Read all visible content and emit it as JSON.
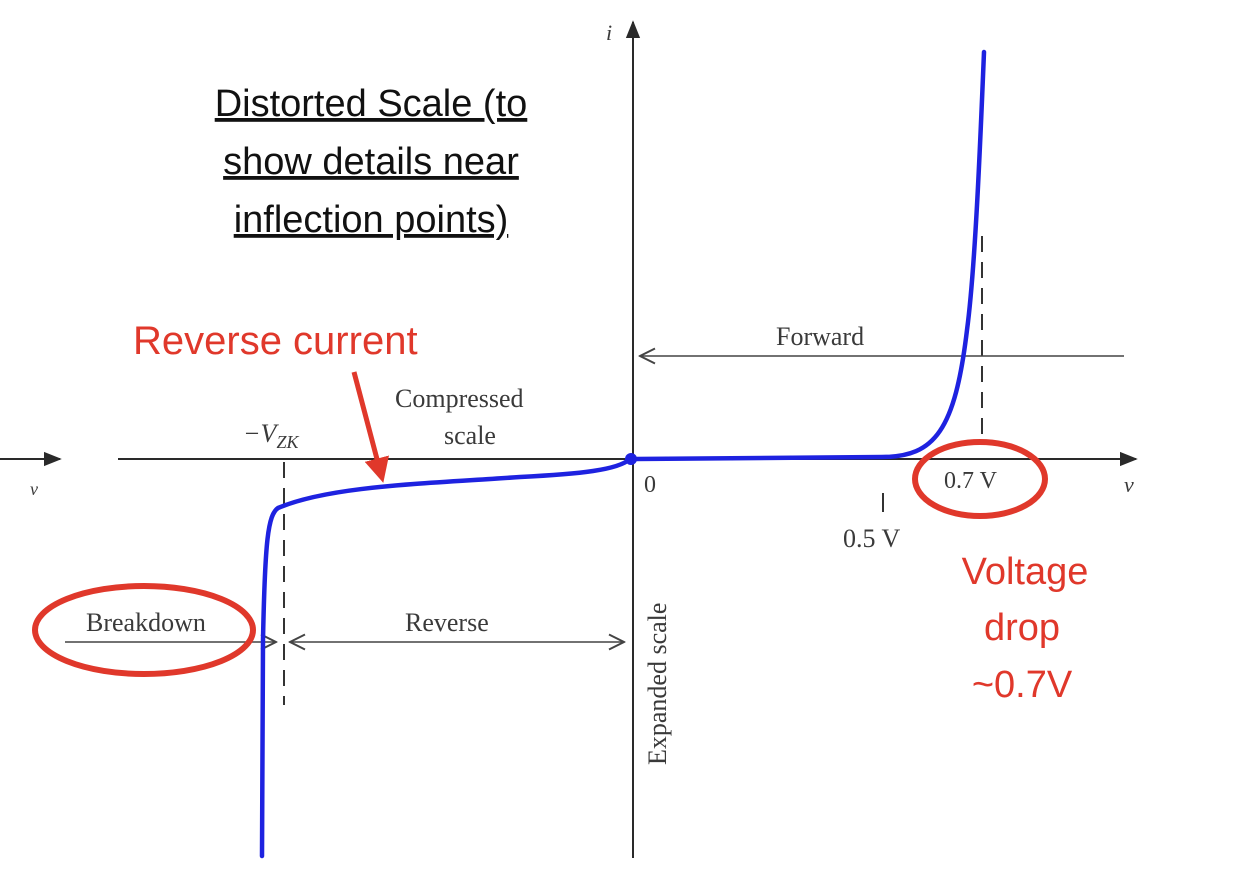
{
  "diagram": {
    "title_lines": [
      "Distorted Scale (to",
      "show details near",
      "inflection points)"
    ],
    "axes": {
      "x_label": "v",
      "x_label_left": "v",
      "y_label": "i",
      "origin": "0"
    },
    "ticks": {
      "neg_vzk": "−V",
      "neg_vzk_sub": "ZK",
      "v05": "0.5 V",
      "v07": "0.7 V"
    },
    "regions": {
      "forward": "Forward",
      "compressed_1": "Compressed",
      "compressed_2": "scale",
      "expanded": "Expanded scale",
      "reverse": "Reverse",
      "breakdown": "Breakdown"
    },
    "annotations": {
      "reverse_current": "Reverse current",
      "voltage_drop_1": "Voltage",
      "voltage_drop_2": "drop",
      "voltage_drop_3": "~0.7V"
    },
    "colors": {
      "curve": "#1e22e0",
      "annotation": "#e0382b",
      "axis": "#2a2a2a",
      "label": "#3a3a3a"
    }
  }
}
